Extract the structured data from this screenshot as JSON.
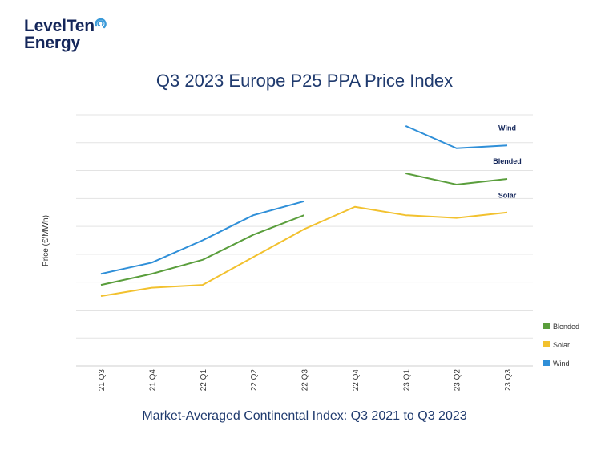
{
  "logo": {
    "line1": "LevelTen",
    "line2": "Energy",
    "accent": "#3a9ad9"
  },
  "chart_data": {
    "type": "line",
    "title": "Q3 2023 Europe P25 PPA Price Index",
    "subtitle": "Market-Averaged Continental Index: Q3 2021 to Q3 2023",
    "ylabel": "Price (€/MWh)",
    "xlabel": "",
    "categories": [
      "21 Q3",
      "21 Q4",
      "22 Q1",
      "22 Q2",
      "22 Q3",
      "22 Q4",
      "23 Q1",
      "23 Q2",
      "23 Q3"
    ],
    "ylim": [
      0,
      9
    ],
    "y_tick_labels_shown": false,
    "grid": "horizontal",
    "legend_position": "right",
    "series": [
      {
        "name": "Blended",
        "color": "#5a9e3c",
        "values": [
          2.9,
          3.3,
          3.8,
          4.7,
          5.4,
          null,
          6.9,
          6.5,
          6.7
        ]
      },
      {
        "name": "Solar",
        "color": "#f2c12e",
        "values": [
          2.5,
          2.8,
          2.9,
          3.9,
          4.9,
          5.7,
          5.4,
          5.3,
          5.5
        ]
      },
      {
        "name": "Wind",
        "color": "#2f8fd8",
        "values": [
          3.3,
          3.7,
          4.5,
          5.4,
          5.9,
          null,
          8.6,
          7.8,
          7.9
        ]
      }
    ],
    "line_labels": [
      "Wind",
      "Blended",
      "Solar"
    ]
  }
}
